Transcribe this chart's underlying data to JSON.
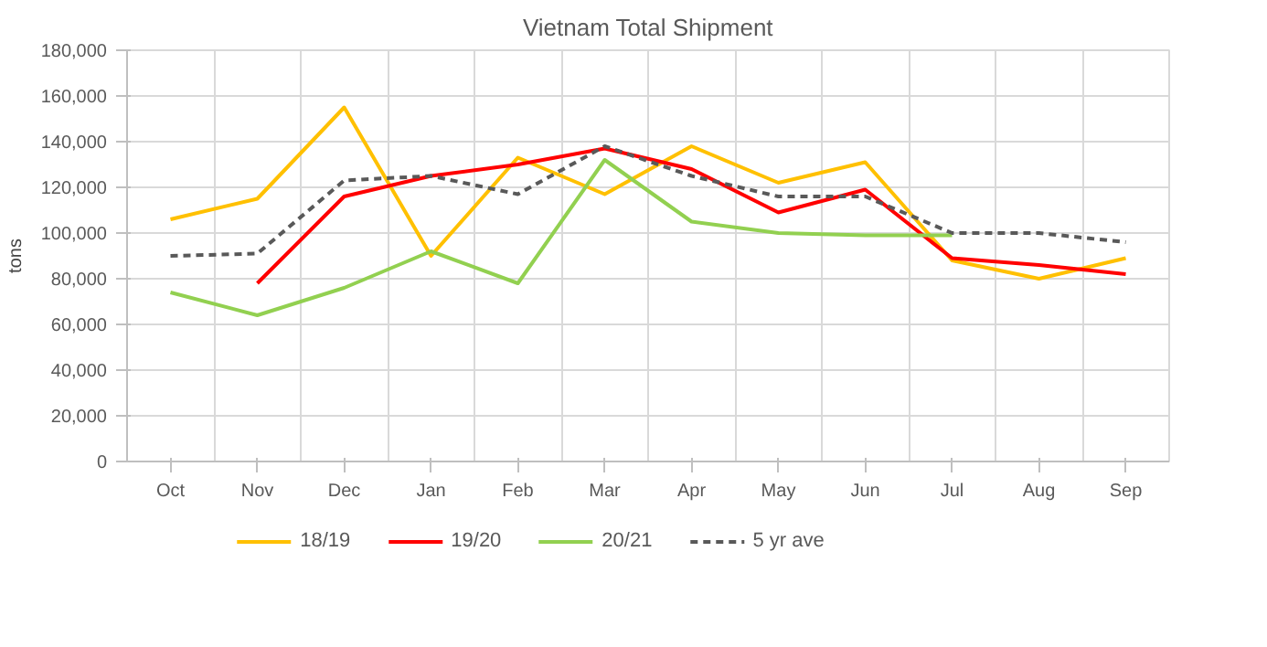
{
  "chart_data": {
    "type": "line",
    "title": "Vietnam Total Shipment",
    "ylabel": "tons",
    "categories": [
      "Oct",
      "Nov",
      "Dec",
      "Jan",
      "Feb",
      "Mar",
      "Apr",
      "May",
      "Jun",
      "Jul",
      "Aug",
      "Sep"
    ],
    "series": [
      {
        "name": "18/19",
        "color": "#ffc000",
        "values": [
          106000,
          115000,
          155000,
          90000,
          133000,
          117000,
          138000,
          122000,
          131000,
          88000,
          80000,
          89000
        ]
      },
      {
        "name": "19/20",
        "color": "#ff0000",
        "values": [
          null,
          78000,
          116000,
          125000,
          130000,
          137000,
          128000,
          109000,
          119000,
          89000,
          86000,
          82000
        ]
      },
      {
        "name": "20/21",
        "color": "#92d050",
        "values": [
          74000,
          64000,
          76000,
          92000,
          78000,
          132000,
          105000,
          100000,
          99000,
          99000,
          null,
          null
        ]
      },
      {
        "name": "5 yr ave",
        "color": "#595959",
        "line_style": "dashed",
        "values": [
          90000,
          91000,
          123000,
          125000,
          117000,
          138000,
          125000,
          116000,
          116000,
          100000,
          100000,
          96000
        ]
      }
    ],
    "ylim": [
      0,
      180000
    ],
    "yticks": [
      {
        "value": 0,
        "label": "0"
      },
      {
        "value": 20000,
        "label": "20,000"
      },
      {
        "value": 40000,
        "label": "40,000"
      },
      {
        "value": 60000,
        "label": "60,000"
      },
      {
        "value": 80000,
        "label": "80,000"
      },
      {
        "value": 100000,
        "label": "100,000"
      },
      {
        "value": 120000,
        "label": "120,000"
      },
      {
        "value": 140000,
        "label": "140,000"
      },
      {
        "value": 160000,
        "label": "160,000"
      },
      {
        "value": 180000,
        "label": "180,000"
      }
    ],
    "grid": true,
    "legend": "bottom",
    "line_style": "solid"
  }
}
